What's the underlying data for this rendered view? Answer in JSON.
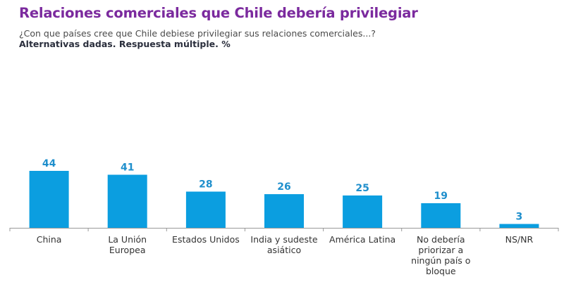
{
  "header": {
    "title": "Relaciones comerciales que Chile debería privilegiar",
    "subtitle": "¿Con que países cree que Chile debiese privilegiar sus relaciones comerciales...?",
    "note": "Alternativas dadas. Respuesta múltiple. %"
  },
  "colors": {
    "title": "#7b2a9e",
    "bar": "#0b9ee0",
    "value_label": "#1f8fcc",
    "axis": "#999999"
  },
  "chart_data": {
    "type": "bar",
    "title": "Relaciones comerciales que Chile debería privilegiar",
    "subtitle": "¿Con que países cree que Chile debiese privilegiar sus relaciones comerciales...?",
    "note": "Alternativas dadas. Respuesta múltiple. %",
    "categories": [
      [
        "China"
      ],
      [
        "La Unión",
        "Europea"
      ],
      [
        "Estados Unidos"
      ],
      [
        "India y sudeste",
        "asiático"
      ],
      [
        "América Latina"
      ],
      [
        "No debería",
        "priorizar a",
        "ningún país o",
        "bloque"
      ],
      [
        "NS/NR"
      ]
    ],
    "values": [
      44,
      41,
      28,
      26,
      25,
      19,
      3
    ],
    "xlabel": "",
    "ylabel": "",
    "ylim": [
      0,
      50
    ],
    "grid": false,
    "legend": "none",
    "data_labels": true
  }
}
